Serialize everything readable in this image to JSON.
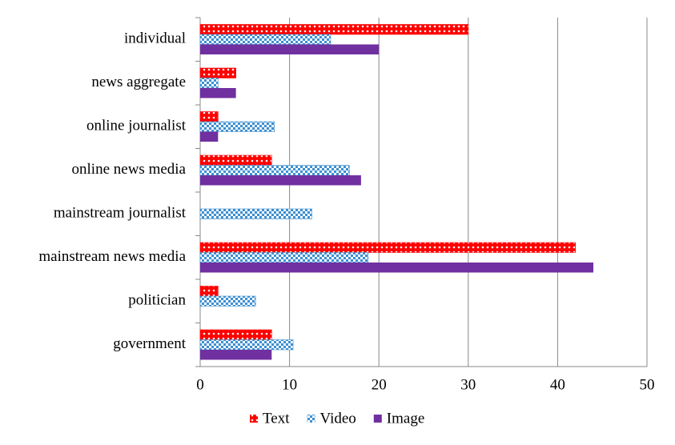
{
  "chart_data": {
    "type": "barh",
    "categories": [
      "individual",
      "news aggregate",
      "online journalist",
      "online news media",
      "mainstream journalist",
      "mainstream news media",
      "politician",
      "government"
    ],
    "series": [
      {
        "name": "Text",
        "color": "#ff0000",
        "pattern": "dots",
        "values": [
          30,
          4,
          2,
          8,
          0,
          42,
          2,
          8
        ]
      },
      {
        "name": "Video",
        "color": "#3d8fd1",
        "pattern": "checker",
        "values": [
          14.6,
          2,
          8.3,
          16.7,
          12.5,
          18.8,
          6.2,
          10.4
        ]
      },
      {
        "name": "Image",
        "color": "#7030a0",
        "pattern": "solid",
        "values": [
          20,
          4,
          2,
          18,
          0,
          44,
          0,
          8
        ]
      }
    ],
    "xlim": [
      0,
      50
    ],
    "xticks": [
      0,
      10,
      20,
      30,
      40,
      50
    ],
    "grid": true,
    "legend": "bottom"
  }
}
